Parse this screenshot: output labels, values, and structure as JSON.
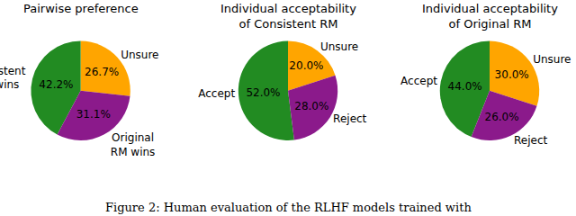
{
  "chart_data": [
    {
      "type": "pie",
      "title": "Pairwise preference",
      "categories": [
        "Unsure",
        "Consistent\nRM wins",
        "Original\nRM wins"
      ],
      "values": [
        26.7,
        42.2,
        31.1
      ],
      "value_labels": [
        "26.7%",
        "42.2%",
        "31.1%"
      ],
      "colors": [
        "#ffa500",
        "#228b22",
        "#8b1a8b"
      ],
      "data_labels": true
    },
    {
      "type": "pie",
      "title": "Individual acceptability\nof Consistent RM",
      "categories": [
        "Unsure",
        "Accept",
        "Reject"
      ],
      "values": [
        20.0,
        52.0,
        28.0
      ],
      "value_labels": [
        "20.0%",
        "52.0%",
        "28.0%"
      ],
      "colors": [
        "#ffa500",
        "#228b22",
        "#8b1a8b"
      ],
      "data_labels": true
    },
    {
      "type": "pie",
      "title": "Individual acceptability\nof Original RM",
      "categories": [
        "Unsure",
        "Accept",
        "Reject"
      ],
      "values": [
        30.0,
        44.0,
        26.0
      ],
      "value_labels": [
        "30.0%",
        "44.0%",
        "26.0%"
      ],
      "colors": [
        "#ffa500",
        "#228b22",
        "#8b1a8b"
      ],
      "data_labels": true
    }
  ],
  "caption": "Figure 2: Human evaluation of the RLHF models trained with"
}
